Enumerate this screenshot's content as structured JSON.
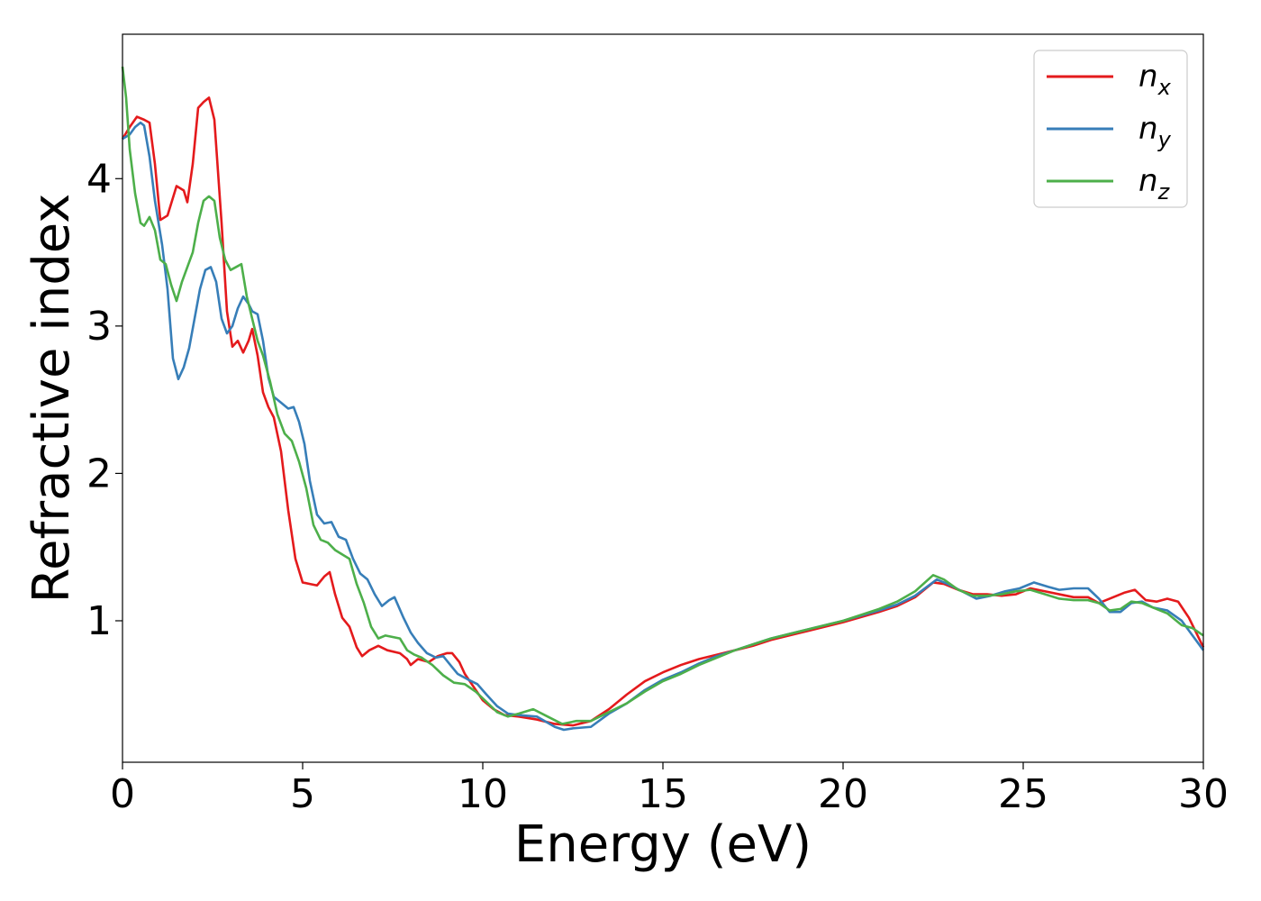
{
  "chart_data": {
    "type": "line",
    "xlabel": "Energy (eV)",
    "ylabel": "Refractive index",
    "xlim": [
      0,
      30
    ],
    "ylim": [
      0.04,
      4.98
    ],
    "x_ticks": [
      0,
      5,
      10,
      15,
      20,
      25,
      30
    ],
    "y_ticks": [
      1,
      2,
      3,
      4
    ],
    "grid": false,
    "legend_position": "top-right",
    "series": [
      {
        "name": "n",
        "subscript": "x",
        "color": "#e41a1c",
        "points": [
          [
            0,
            4.27
          ],
          [
            0.2,
            4.35
          ],
          [
            0.4,
            4.42
          ],
          [
            0.6,
            4.4
          ],
          [
            0.75,
            4.38
          ],
          [
            0.9,
            4.1
          ],
          [
            1.05,
            3.72
          ],
          [
            1.25,
            3.75
          ],
          [
            1.5,
            3.95
          ],
          [
            1.7,
            3.92
          ],
          [
            1.8,
            3.84
          ],
          [
            1.95,
            4.1
          ],
          [
            2.1,
            4.48
          ],
          [
            2.25,
            4.52
          ],
          [
            2.4,
            4.55
          ],
          [
            2.55,
            4.4
          ],
          [
            2.75,
            3.7
          ],
          [
            2.9,
            3.1
          ],
          [
            3.05,
            2.86
          ],
          [
            3.2,
            2.9
          ],
          [
            3.35,
            2.82
          ],
          [
            3.5,
            2.9
          ],
          [
            3.6,
            2.98
          ],
          [
            3.75,
            2.8
          ],
          [
            3.9,
            2.55
          ],
          [
            4.05,
            2.45
          ],
          [
            4.2,
            2.38
          ],
          [
            4.4,
            2.15
          ],
          [
            4.6,
            1.75
          ],
          [
            4.8,
            1.42
          ],
          [
            5.0,
            1.26
          ],
          [
            5.2,
            1.25
          ],
          [
            5.4,
            1.24
          ],
          [
            5.6,
            1.3
          ],
          [
            5.75,
            1.33
          ],
          [
            5.9,
            1.18
          ],
          [
            6.1,
            1.02
          ],
          [
            6.3,
            0.96
          ],
          [
            6.5,
            0.82
          ],
          [
            6.65,
            0.76
          ],
          [
            6.85,
            0.8
          ],
          [
            7.1,
            0.83
          ],
          [
            7.35,
            0.8
          ],
          [
            7.7,
            0.78
          ],
          [
            7.9,
            0.74
          ],
          [
            8.0,
            0.7
          ],
          [
            8.2,
            0.74
          ],
          [
            8.5,
            0.72
          ],
          [
            8.75,
            0.76
          ],
          [
            9.0,
            0.78
          ],
          [
            9.15,
            0.78
          ],
          [
            9.35,
            0.72
          ],
          [
            9.5,
            0.64
          ],
          [
            9.75,
            0.55
          ],
          [
            10.0,
            0.46
          ],
          [
            10.3,
            0.4
          ],
          [
            10.6,
            0.36
          ],
          [
            11.0,
            0.35
          ],
          [
            11.5,
            0.33
          ],
          [
            12.0,
            0.3
          ],
          [
            12.5,
            0.29
          ],
          [
            13.0,
            0.32
          ],
          [
            13.5,
            0.4
          ],
          [
            14.0,
            0.5
          ],
          [
            14.5,
            0.59
          ],
          [
            15.0,
            0.65
          ],
          [
            15.5,
            0.7
          ],
          [
            16.0,
            0.74
          ],
          [
            16.5,
            0.77
          ],
          [
            17.0,
            0.8
          ],
          [
            17.5,
            0.83
          ],
          [
            18.0,
            0.87
          ],
          [
            19.0,
            0.93
          ],
          [
            20.0,
            0.99
          ],
          [
            21.0,
            1.06
          ],
          [
            21.5,
            1.1
          ],
          [
            22.0,
            1.16
          ],
          [
            22.5,
            1.26
          ],
          [
            22.8,
            1.25
          ],
          [
            23.2,
            1.21
          ],
          [
            23.6,
            1.18
          ],
          [
            24.0,
            1.18
          ],
          [
            24.4,
            1.17
          ],
          [
            24.8,
            1.18
          ],
          [
            25.2,
            1.22
          ],
          [
            25.6,
            1.2
          ],
          [
            26.0,
            1.18
          ],
          [
            26.4,
            1.16
          ],
          [
            26.8,
            1.16
          ],
          [
            27.1,
            1.12
          ],
          [
            27.4,
            1.15
          ],
          [
            27.8,
            1.19
          ],
          [
            28.1,
            1.21
          ],
          [
            28.4,
            1.14
          ],
          [
            28.7,
            1.13
          ],
          [
            29.0,
            1.15
          ],
          [
            29.3,
            1.13
          ],
          [
            29.6,
            1.02
          ],
          [
            30.0,
            0.82
          ]
        ]
      },
      {
        "name": "n",
        "subscript": "y",
        "color": "#377eb8",
        "points": [
          [
            0,
            4.27
          ],
          [
            0.2,
            4.3
          ],
          [
            0.35,
            4.35
          ],
          [
            0.5,
            4.38
          ],
          [
            0.6,
            4.36
          ],
          [
            0.75,
            4.15
          ],
          [
            0.9,
            3.85
          ],
          [
            1.1,
            3.55
          ],
          [
            1.25,
            3.25
          ],
          [
            1.4,
            2.78
          ],
          [
            1.55,
            2.64
          ],
          [
            1.7,
            2.72
          ],
          [
            1.85,
            2.85
          ],
          [
            2.0,
            3.05
          ],
          [
            2.15,
            3.25
          ],
          [
            2.3,
            3.38
          ],
          [
            2.45,
            3.4
          ],
          [
            2.6,
            3.3
          ],
          [
            2.75,
            3.05
          ],
          [
            2.9,
            2.95
          ],
          [
            3.05,
            3.0
          ],
          [
            3.2,
            3.12
          ],
          [
            3.35,
            3.2
          ],
          [
            3.5,
            3.15
          ],
          [
            3.6,
            3.1
          ],
          [
            3.75,
            3.08
          ],
          [
            3.9,
            2.9
          ],
          [
            4.05,
            2.65
          ],
          [
            4.2,
            2.52
          ],
          [
            4.4,
            2.48
          ],
          [
            4.6,
            2.44
          ],
          [
            4.75,
            2.45
          ],
          [
            4.9,
            2.35
          ],
          [
            5.05,
            2.2
          ],
          [
            5.2,
            1.95
          ],
          [
            5.4,
            1.72
          ],
          [
            5.6,
            1.66
          ],
          [
            5.8,
            1.67
          ],
          [
            6.0,
            1.57
          ],
          [
            6.2,
            1.55
          ],
          [
            6.4,
            1.42
          ],
          [
            6.6,
            1.32
          ],
          [
            6.8,
            1.28
          ],
          [
            7.0,
            1.18
          ],
          [
            7.2,
            1.1
          ],
          [
            7.4,
            1.14
          ],
          [
            7.55,
            1.16
          ],
          [
            7.8,
            1.02
          ],
          [
            8.0,
            0.92
          ],
          [
            8.2,
            0.85
          ],
          [
            8.45,
            0.78
          ],
          [
            8.7,
            0.75
          ],
          [
            8.9,
            0.76
          ],
          [
            9.1,
            0.7
          ],
          [
            9.3,
            0.64
          ],
          [
            9.6,
            0.6
          ],
          [
            9.85,
            0.57
          ],
          [
            10.1,
            0.5
          ],
          [
            10.4,
            0.42
          ],
          [
            10.7,
            0.37
          ],
          [
            11.0,
            0.36
          ],
          [
            11.5,
            0.35
          ],
          [
            12.0,
            0.28
          ],
          [
            12.25,
            0.26
          ],
          [
            12.5,
            0.27
          ],
          [
            13.0,
            0.28
          ],
          [
            13.5,
            0.37
          ],
          [
            14.0,
            0.44
          ],
          [
            14.5,
            0.53
          ],
          [
            15.0,
            0.6
          ],
          [
            15.5,
            0.65
          ],
          [
            16.0,
            0.71
          ],
          [
            16.5,
            0.76
          ],
          [
            17.0,
            0.8
          ],
          [
            17.5,
            0.84
          ],
          [
            18.0,
            0.88
          ],
          [
            19.0,
            0.94
          ],
          [
            20.0,
            1.0
          ],
          [
            21.0,
            1.07
          ],
          [
            21.5,
            1.11
          ],
          [
            22.0,
            1.17
          ],
          [
            22.6,
            1.28
          ],
          [
            22.9,
            1.25
          ],
          [
            23.3,
            1.2
          ],
          [
            23.7,
            1.15
          ],
          [
            24.1,
            1.17
          ],
          [
            24.5,
            1.2
          ],
          [
            24.9,
            1.22
          ],
          [
            25.3,
            1.26
          ],
          [
            25.7,
            1.23
          ],
          [
            26.0,
            1.21
          ],
          [
            26.4,
            1.22
          ],
          [
            26.8,
            1.22
          ],
          [
            27.1,
            1.15
          ],
          [
            27.4,
            1.06
          ],
          [
            27.7,
            1.06
          ],
          [
            28.0,
            1.12
          ],
          [
            28.3,
            1.13
          ],
          [
            28.6,
            1.09
          ],
          [
            29.0,
            1.07
          ],
          [
            29.4,
            1.0
          ],
          [
            29.7,
            0.9
          ],
          [
            30.0,
            0.8
          ]
        ]
      },
      {
        "name": "n",
        "subscript": "z",
        "color": "#4daf4a",
        "points": [
          [
            0,
            4.76
          ],
          [
            0.1,
            4.55
          ],
          [
            0.2,
            4.2
          ],
          [
            0.35,
            3.9
          ],
          [
            0.5,
            3.7
          ],
          [
            0.6,
            3.68
          ],
          [
            0.75,
            3.74
          ],
          [
            0.9,
            3.65
          ],
          [
            1.05,
            3.45
          ],
          [
            1.2,
            3.42
          ],
          [
            1.35,
            3.28
          ],
          [
            1.5,
            3.17
          ],
          [
            1.65,
            3.3
          ],
          [
            1.8,
            3.4
          ],
          [
            1.95,
            3.5
          ],
          [
            2.1,
            3.7
          ],
          [
            2.25,
            3.85
          ],
          [
            2.4,
            3.88
          ],
          [
            2.55,
            3.85
          ],
          [
            2.7,
            3.6
          ],
          [
            2.85,
            3.45
          ],
          [
            3.0,
            3.38
          ],
          [
            3.15,
            3.4
          ],
          [
            3.3,
            3.42
          ],
          [
            3.45,
            3.2
          ],
          [
            3.6,
            3.05
          ],
          [
            3.75,
            2.9
          ],
          [
            3.9,
            2.8
          ],
          [
            4.1,
            2.62
          ],
          [
            4.3,
            2.4
          ],
          [
            4.5,
            2.27
          ],
          [
            4.7,
            2.22
          ],
          [
            4.9,
            2.08
          ],
          [
            5.1,
            1.9
          ],
          [
            5.3,
            1.65
          ],
          [
            5.5,
            1.55
          ],
          [
            5.7,
            1.53
          ],
          [
            5.9,
            1.48
          ],
          [
            6.1,
            1.45
          ],
          [
            6.3,
            1.42
          ],
          [
            6.5,
            1.25
          ],
          [
            6.7,
            1.12
          ],
          [
            6.9,
            0.96
          ],
          [
            7.1,
            0.88
          ],
          [
            7.3,
            0.9
          ],
          [
            7.5,
            0.89
          ],
          [
            7.7,
            0.88
          ],
          [
            7.9,
            0.8
          ],
          [
            8.1,
            0.77
          ],
          [
            8.3,
            0.75
          ],
          [
            8.6,
            0.7
          ],
          [
            8.9,
            0.63
          ],
          [
            9.2,
            0.58
          ],
          [
            9.5,
            0.57
          ],
          [
            9.8,
            0.52
          ],
          [
            10.1,
            0.45
          ],
          [
            10.4,
            0.38
          ],
          [
            10.7,
            0.35
          ],
          [
            11.0,
            0.37
          ],
          [
            11.4,
            0.4
          ],
          [
            11.8,
            0.35
          ],
          [
            12.2,
            0.3
          ],
          [
            12.6,
            0.32
          ],
          [
            13.0,
            0.32
          ],
          [
            13.5,
            0.38
          ],
          [
            14.0,
            0.44
          ],
          [
            14.5,
            0.52
          ],
          [
            15.0,
            0.59
          ],
          [
            15.5,
            0.64
          ],
          [
            16.0,
            0.7
          ],
          [
            16.5,
            0.75
          ],
          [
            17.0,
            0.8
          ],
          [
            17.5,
            0.84
          ],
          [
            18.0,
            0.88
          ],
          [
            19.0,
            0.94
          ],
          [
            20.0,
            1.0
          ],
          [
            21.0,
            1.08
          ],
          [
            21.5,
            1.13
          ],
          [
            22.0,
            1.2
          ],
          [
            22.5,
            1.31
          ],
          [
            22.8,
            1.28
          ],
          [
            23.2,
            1.21
          ],
          [
            23.6,
            1.17
          ],
          [
            24.0,
            1.17
          ],
          [
            24.4,
            1.18
          ],
          [
            24.8,
            1.2
          ],
          [
            25.2,
            1.21
          ],
          [
            25.6,
            1.18
          ],
          [
            26.0,
            1.15
          ],
          [
            26.4,
            1.14
          ],
          [
            26.8,
            1.14
          ],
          [
            27.1,
            1.12
          ],
          [
            27.4,
            1.07
          ],
          [
            27.7,
            1.08
          ],
          [
            28.0,
            1.13
          ],
          [
            28.3,
            1.12
          ],
          [
            28.6,
            1.09
          ],
          [
            29.0,
            1.05
          ],
          [
            29.4,
            0.97
          ],
          [
            29.7,
            0.95
          ],
          [
            30.0,
            0.9
          ]
        ]
      }
    ]
  }
}
